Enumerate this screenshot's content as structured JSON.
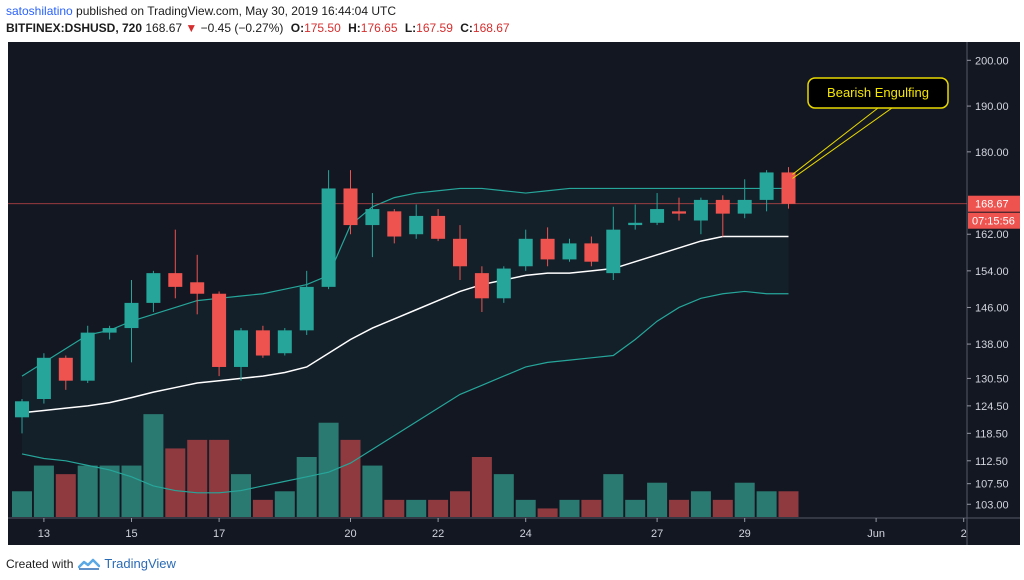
{
  "header": {
    "username": "satoshilatino",
    "published_text": " published on TradingView.com, May 30, 2019 16:44:04 UTC",
    "symbol": "BITFINEX:DSHUSD, 720",
    "last": "168.67",
    "change_arrow": "▼",
    "change": "−0.45 (−0.27%)",
    "o_label": "O:",
    "o_value": "175.50",
    "h_label": "H:",
    "h_value": "176.65",
    "l_label": "L:",
    "l_value": "167.59",
    "c_label": "C:",
    "c_value": "168.67"
  },
  "footer": {
    "created_with": "Created with",
    "brand": "TradingView"
  },
  "colors": {
    "bull": "#26a69a",
    "bear": "#ef5350",
    "volume_bull": "#2b7a71",
    "volume_bear": "#8f3a3f",
    "band": "#26a69a",
    "basis": "#ffffff",
    "background": "#131722",
    "annotation_bg": "#000000",
    "annotation_border": "#e8d800",
    "annotation_text": "#f5e600"
  },
  "chart_data": {
    "type": "candlestick",
    "indicator": "Bollinger Bands",
    "ylim": [
      100,
      204
    ],
    "y_ticks": [
      "200.00",
      "190.00",
      "180.00",
      "168.67",
      "162.00",
      "154.00",
      "146.00",
      "138.00",
      "130.50",
      "124.50",
      "118.50",
      "112.50",
      "107.50",
      "103.00"
    ],
    "y_tick_values": [
      200,
      190,
      180,
      168.67,
      162,
      154,
      146,
      138,
      130.5,
      124.5,
      118.5,
      112.5,
      107.5,
      103
    ],
    "last_price_label": "168.67",
    "countdown_label": "07:15:56",
    "x_ticks": [
      {
        "label": "13",
        "index": 1
      },
      {
        "label": "15",
        "index": 5
      },
      {
        "label": "17",
        "index": 9
      },
      {
        "label": "20",
        "index": 15
      },
      {
        "label": "22",
        "index": 19
      },
      {
        "label": "24",
        "index": 23
      },
      {
        "label": "27",
        "index": 29
      },
      {
        "label": "29",
        "index": 33
      },
      {
        "label": "Jun",
        "index": 39
      },
      {
        "label": "2",
        "index": 43
      }
    ],
    "candles": [
      {
        "o": 122.0,
        "h": 126.0,
        "l": 118.5,
        "c": 125.5,
        "v": 3
      },
      {
        "o": 126.0,
        "h": 136.0,
        "l": 125.0,
        "c": 135.0,
        "v": 6
      },
      {
        "o": 135.0,
        "h": 135.5,
        "l": 128.0,
        "c": 130.0,
        "v": 5
      },
      {
        "o": 130.0,
        "h": 142.0,
        "l": 129.5,
        "c": 140.5,
        "v": 6
      },
      {
        "o": 140.5,
        "h": 142.0,
        "l": 139.0,
        "c": 141.5,
        "v": 6
      },
      {
        "o": 141.5,
        "h": 152.0,
        "l": 134.0,
        "c": 147.0,
        "v": 6
      },
      {
        "o": 147.0,
        "h": 154.0,
        "l": 145.0,
        "c": 153.5,
        "v": 12
      },
      {
        "o": 153.5,
        "h": 163.0,
        "l": 148.0,
        "c": 150.5,
        "v": 8
      },
      {
        "o": 151.5,
        "h": 157.5,
        "l": 144.5,
        "c": 149.0,
        "v": 9
      },
      {
        "o": 149.0,
        "h": 149.5,
        "l": 131.0,
        "c": 133.0,
        "v": 9
      },
      {
        "o": 133.0,
        "h": 141.5,
        "l": 130.0,
        "c": 141.0,
        "v": 5
      },
      {
        "o": 141.0,
        "h": 142.0,
        "l": 135.0,
        "c": 135.5,
        "v": 2
      },
      {
        "o": 136.0,
        "h": 141.5,
        "l": 135.5,
        "c": 141.0,
        "v": 3
      },
      {
        "o": 141.0,
        "h": 154.0,
        "l": 140.0,
        "c": 150.5,
        "v": 7
      },
      {
        "o": 150.5,
        "h": 176.0,
        "l": 150.0,
        "c": 172.0,
        "v": 11
      },
      {
        "o": 172.0,
        "h": 176.0,
        "l": 162.0,
        "c": 164.0,
        "v": 9
      },
      {
        "o": 164.0,
        "h": 171.0,
        "l": 157.0,
        "c": 167.5,
        "v": 6
      },
      {
        "o": 167.0,
        "h": 167.5,
        "l": 160.0,
        "c": 161.5,
        "v": 2
      },
      {
        "o": 162.0,
        "h": 168.5,
        "l": 161.0,
        "c": 166.0,
        "v": 2
      },
      {
        "o": 166.0,
        "h": 167.5,
        "l": 160.5,
        "c": 161.0,
        "v": 2
      },
      {
        "o": 161.0,
        "h": 164.0,
        "l": 152.0,
        "c": 155.0,
        "v": 3
      },
      {
        "o": 153.5,
        "h": 155.0,
        "l": 145.0,
        "c": 148.0,
        "v": 7
      },
      {
        "o": 148.0,
        "h": 155.0,
        "l": 147.0,
        "c": 154.5,
        "v": 5
      },
      {
        "o": 155.0,
        "h": 163.0,
        "l": 154.0,
        "c": 161.0,
        "v": 2
      },
      {
        "o": 161.0,
        "h": 163.5,
        "l": 155.0,
        "c": 156.5,
        "v": 1
      },
      {
        "o": 156.5,
        "h": 161.0,
        "l": 156.0,
        "c": 160.0,
        "v": 2
      },
      {
        "o": 160.0,
        "h": 161.5,
        "l": 155.0,
        "c": 156.0,
        "v": 2
      },
      {
        "o": 153.5,
        "h": 168.0,
        "l": 152.0,
        "c": 163.0,
        "v": 5
      },
      {
        "o": 164.0,
        "h": 168.5,
        "l": 163.0,
        "c": 164.5,
        "v": 2
      },
      {
        "o": 164.5,
        "h": 171.0,
        "l": 164.0,
        "c": 167.5,
        "v": 4
      },
      {
        "o": 167.0,
        "h": 170.0,
        "l": 165.0,
        "c": 166.5,
        "v": 2
      },
      {
        "o": 165.0,
        "h": 170.0,
        "l": 162.0,
        "c": 169.5,
        "v": 3
      },
      {
        "o": 169.5,
        "h": 170.5,
        "l": 161.5,
        "c": 166.5,
        "v": 2
      },
      {
        "o": 166.5,
        "h": 174.0,
        "l": 165.5,
        "c": 169.5,
        "v": 4
      },
      {
        "o": 169.5,
        "h": 176.0,
        "l": 167.0,
        "c": 175.5,
        "v": 3
      },
      {
        "o": 175.5,
        "h": 176.65,
        "l": 167.59,
        "c": 168.67,
        "v": 3
      }
    ],
    "volume_scale_max": 14,
    "bollinger": {
      "upper": [
        131,
        134,
        137,
        140,
        141,
        143,
        144.5,
        146,
        147.5,
        148,
        148.5,
        149,
        150,
        151,
        153,
        164,
        168,
        170,
        171,
        171.5,
        172,
        172,
        171.5,
        171,
        171.5,
        172,
        172,
        172,
        172,
        172,
        172,
        172,
        172,
        172,
        172,
        172
      ],
      "basis": [
        123,
        123.5,
        124,
        124.5,
        125.2,
        126.3,
        127.5,
        128.5,
        129.5,
        130,
        130.5,
        131,
        131.8,
        133,
        136,
        139,
        141.5,
        143.5,
        145.5,
        147.5,
        149.5,
        151,
        152,
        153,
        153.5,
        153.5,
        154,
        154.5,
        156,
        157.5,
        159,
        160.5,
        161.5,
        161.5,
        161.5,
        161.5
      ],
      "lower": [
        114,
        113,
        112.5,
        111.5,
        110.5,
        109,
        107,
        106,
        105.5,
        105.5,
        106,
        107,
        108,
        109,
        110,
        112,
        115,
        118,
        121,
        124,
        127,
        129,
        131,
        133,
        134,
        134.5,
        135,
        135.5,
        139,
        143,
        146,
        148,
        149,
        149.5,
        149,
        149
      ]
    },
    "annotation": {
      "text": "Bearish Engulfing",
      "target_index": 35
    }
  }
}
